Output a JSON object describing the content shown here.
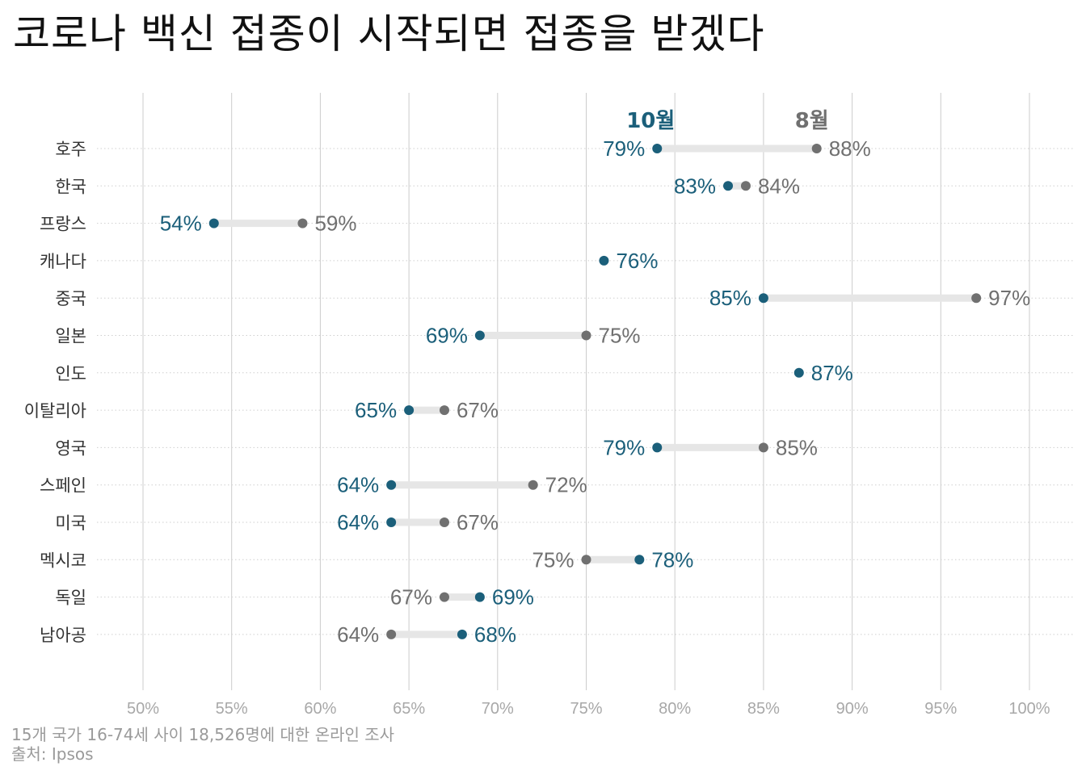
{
  "title": "코로나 백신 접종이 시작되면 접종을 받겠다",
  "caption": {
    "note": "15개 국가 16-74세 사이 18,526명에 대한 온라인 조사",
    "source": "출처: Ipsos"
  },
  "colors": {
    "october": "#1b5f7a",
    "august": "#707070",
    "connector": "#e6e6e6",
    "grid": "#cccccc",
    "tick": "#a8a8a8"
  },
  "chart_data": {
    "type": "dumbbell",
    "xlim": [
      50,
      100
    ],
    "xticks": [
      50,
      55,
      60,
      65,
      70,
      75,
      80,
      85,
      90,
      95,
      100
    ],
    "xtick_labels": [
      "50%",
      "55%",
      "60%",
      "65%",
      "70%",
      "75%",
      "80%",
      "85%",
      "90%",
      "95%",
      "100%"
    ],
    "legend": {
      "october": "10월",
      "august": "8월"
    },
    "categories": [
      "호주",
      "한국",
      "프랑스",
      "캐나다",
      "중국",
      "일본",
      "인도",
      "이탈리아",
      "영국",
      "스페인",
      "미국",
      "멕시코",
      "독일",
      "남아공"
    ],
    "series": [
      {
        "name": "10월",
        "values": [
          79,
          83,
          54,
          76,
          85,
          69,
          87,
          65,
          79,
          64,
          64,
          78,
          69,
          68
        ]
      },
      {
        "name": "8월",
        "values": [
          88,
          84,
          59,
          null,
          97,
          75,
          null,
          67,
          85,
          72,
          67,
          75,
          67,
          64
        ]
      }
    ]
  }
}
